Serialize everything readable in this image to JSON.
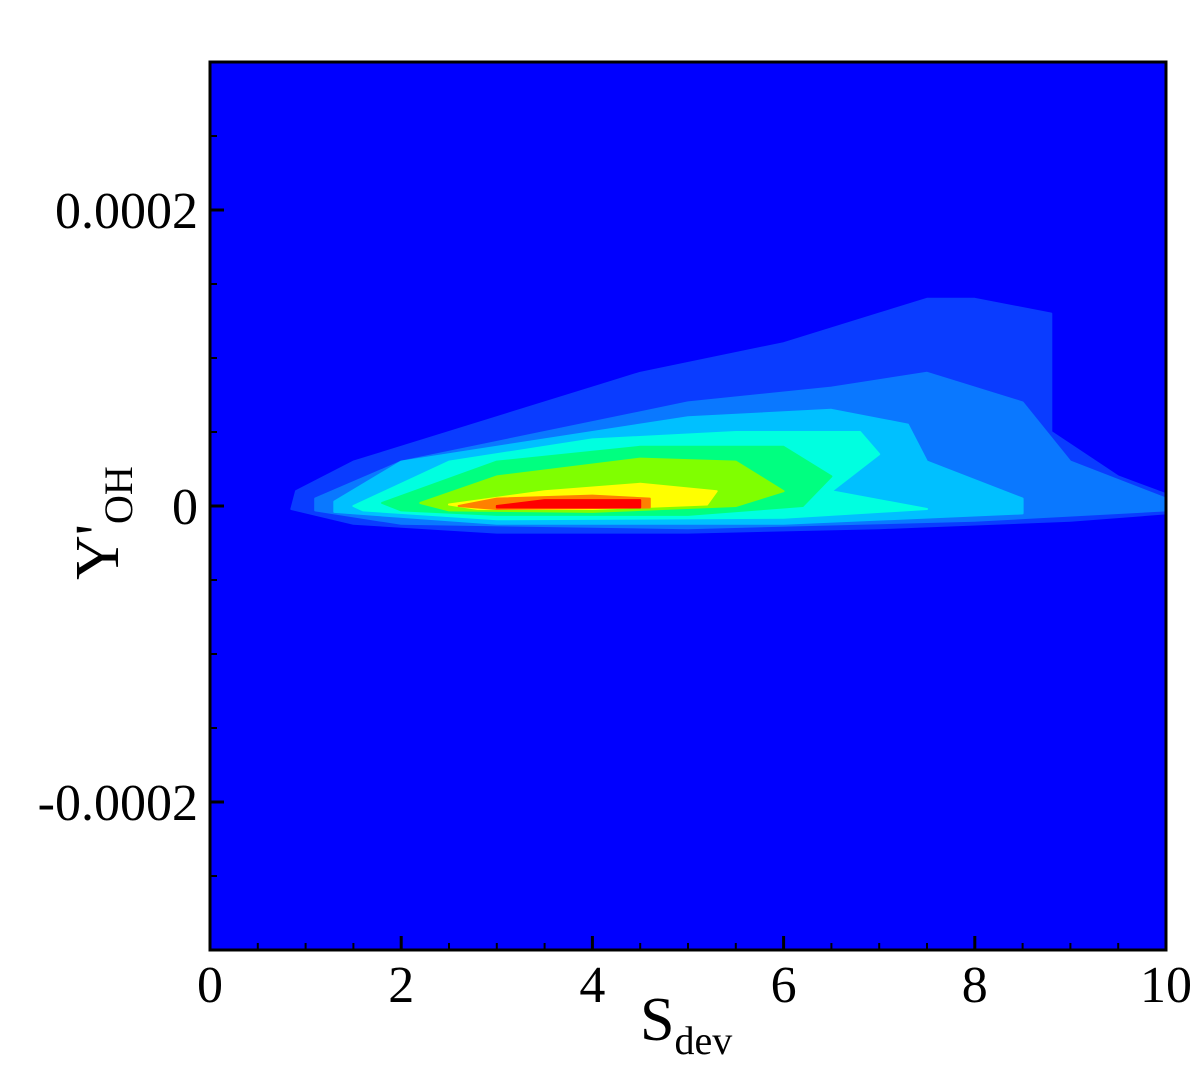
{
  "chart_data": {
    "type": "contour",
    "xlabel": "S",
    "xlabel_sub": "dev",
    "ylabel": "Y'",
    "ylabel_sub": "OH",
    "xlim": [
      0,
      10
    ],
    "ylim": [
      -0.0003,
      0.0003
    ],
    "xticks": [
      0,
      2,
      4,
      6,
      8,
      10
    ],
    "yticks": [
      -0.0002,
      0,
      0.0002
    ],
    "minor_xticks": [
      0.5,
      1,
      1.5,
      2.5,
      3,
      3.5,
      4.5,
      5,
      5.5,
      6.5,
      7,
      7.5,
      8.5,
      9,
      9.5
    ],
    "minor_yticks": [
      -0.00025,
      -0.00015,
      -0.0001,
      -5e-05,
      5e-05,
      0.0001,
      0.00015,
      0.00025
    ],
    "background_color": "#0000ff",
    "series": [
      {
        "color": "#0a3cff",
        "x": [
          0.85,
          0.9,
          1.5,
          3,
          4.5,
          6,
          7,
          7.5,
          8,
          8.8,
          8.8,
          9.5,
          10,
          10,
          9,
          7,
          5,
          3,
          1.5
        ],
        "y": [
          -2e-06,
          1e-05,
          3e-05,
          6e-05,
          9e-05,
          0.00011,
          0.00013,
          0.00014,
          0.00014,
          0.00013,
          5e-05,
          2e-05,
          8e-06,
          -5e-06,
          -1e-05,
          -1.5e-05,
          -1.8e-05,
          -1.8e-05,
          -1.2e-05
        ]
      },
      {
        "color": "#0a78ff",
        "x": [
          1.1,
          2,
          3.5,
          5,
          6.5,
          7.5,
          8.5,
          9,
          10,
          10,
          8,
          5,
          2,
          1.1
        ],
        "y": [
          5e-06,
          3e-05,
          5e-05,
          7e-05,
          8e-05,
          9e-05,
          7e-05,
          3e-05,
          5e-06,
          -3e-06,
          -1e-05,
          -1.5e-05,
          -1.2e-05,
          -3e-06
        ]
      },
      {
        "color": "#00c0ff",
        "x": [
          1.3,
          2,
          3.5,
          5,
          6.5,
          7.3,
          7.5,
          8.5,
          8.5,
          6,
          3,
          1.3
        ],
        "y": [
          3e-06,
          3e-05,
          4.5e-05,
          6e-05,
          6.5e-05,
          5.5e-05,
          3e-05,
          5e-06,
          -5e-06,
          -1.2e-05,
          -1.2e-05,
          -4e-06
        ]
      },
      {
        "color": "#00ffe0",
        "x": [
          1.5,
          2.5,
          4,
          5.5,
          6.8,
          7,
          6.5,
          7.5,
          6,
          3,
          1.6
        ],
        "y": [
          0,
          3e-05,
          4.5e-05,
          5e-05,
          5e-05,
          3.5e-05,
          1e-05,
          -2e-06,
          -8e-06,
          -9e-06,
          -3e-06
        ]
      },
      {
        "color": "#00ff80",
        "x": [
          1.8,
          3,
          4.5,
          6,
          6.5,
          6.2,
          5,
          3,
          2
        ],
        "y": [
          2e-06,
          3e-05,
          4e-05,
          4e-05,
          2e-05,
          0,
          -6e-06,
          -6e-06,
          -3e-06
        ]
      },
      {
        "color": "#80ff00",
        "x": [
          2.2,
          3,
          4.5,
          5.5,
          6,
          5.5,
          4,
          2.5
        ],
        "y": [
          2e-06,
          2e-05,
          3.2e-05,
          3e-05,
          1e-05,
          0,
          -4e-06,
          -3e-06
        ]
      },
      {
        "color": "#ffff00",
        "x": [
          2.5,
          3.5,
          4.5,
          5.3,
          5.2,
          4,
          2.8
        ],
        "y": [
          1e-06,
          1e-05,
          1.5e-05,
          1e-05,
          1e-06,
          -2e-06,
          -2e-06
        ]
      },
      {
        "color": "#ff8000",
        "x": [
          2.6,
          3,
          4,
          4.6,
          4.6,
          3
        ],
        "y": [
          0,
          5e-06,
          7e-06,
          5e-06,
          -1e-06,
          -2e-06
        ]
      },
      {
        "color": "#ff0000",
        "x": [
          3,
          3.5,
          4.5,
          4.5,
          3
        ],
        "y": [
          0,
          4e-06,
          4e-06,
          -1e-06,
          -1e-06
        ]
      }
    ]
  }
}
